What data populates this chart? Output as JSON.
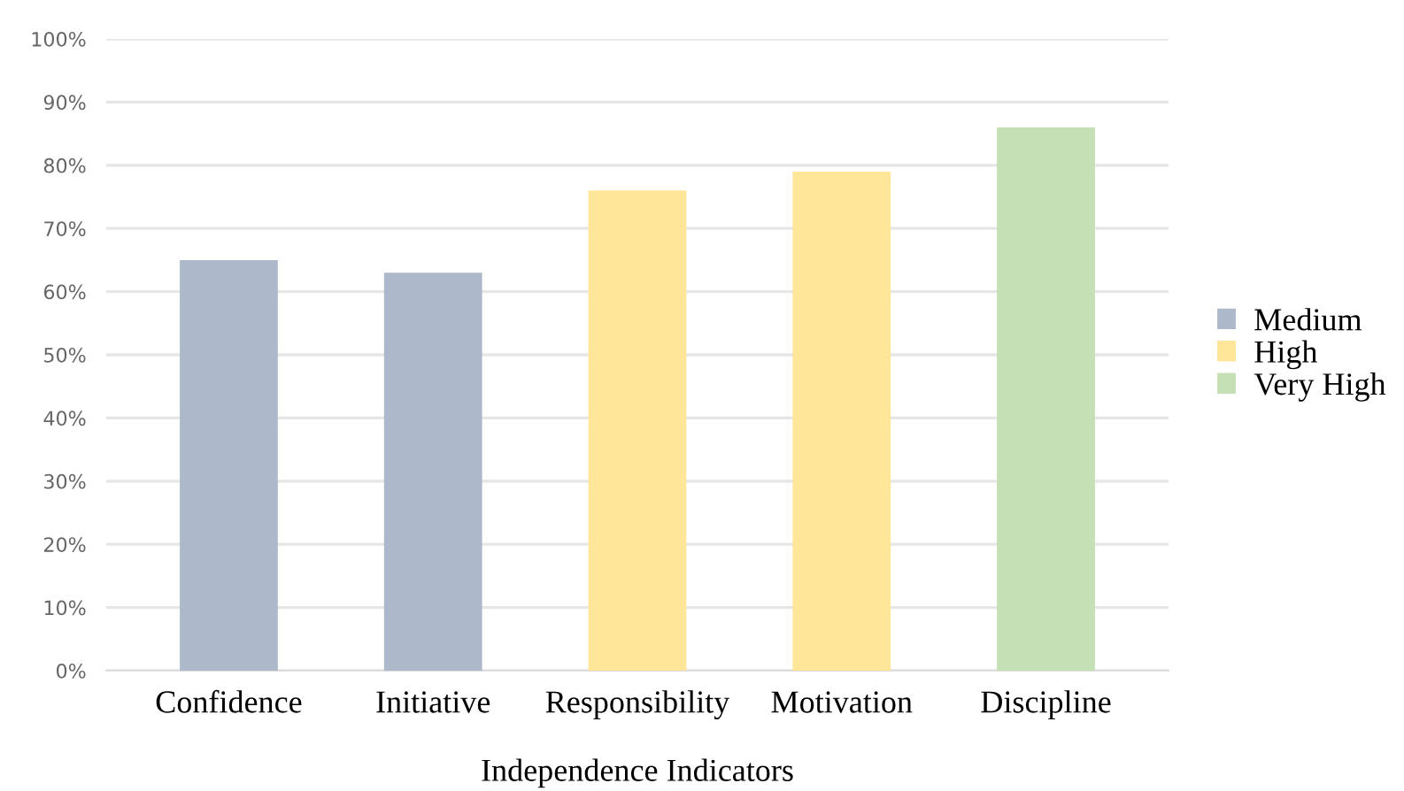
{
  "chart_data": {
    "type": "bar",
    "xlabel": "Independence Indicators",
    "categories": [
      "Confidence",
      "Initiative",
      "Responsibility",
      "Motivation",
      "Discipline"
    ],
    "series": [
      {
        "name": "Medium",
        "color": "#adb9ca",
        "values": [
          65,
          63,
          null,
          null,
          null
        ]
      },
      {
        "name": "High",
        "color": "#ffe699",
        "values": [
          null,
          null,
          76,
          79,
          null
        ]
      },
      {
        "name": "Very High",
        "color": "#c5e0b4",
        "values": [
          null,
          null,
          null,
          null,
          86
        ]
      }
    ],
    "ylim": [
      0,
      100
    ],
    "yticks": [
      {
        "value": 0,
        "label": "0%"
      },
      {
        "value": 10,
        "label": "10%"
      },
      {
        "value": 20,
        "label": "20%"
      },
      {
        "value": 30,
        "label": "30%"
      },
      {
        "value": 40,
        "label": "40%"
      },
      {
        "value": 50,
        "label": "50%"
      },
      {
        "value": 60,
        "label": "60%"
      },
      {
        "value": 70,
        "label": "70%"
      },
      {
        "value": 80,
        "label": "80%"
      },
      {
        "value": 90,
        "label": "90%"
      },
      {
        "value": 100,
        "label": "100%"
      }
    ],
    "grid": "y",
    "legend": "right"
  }
}
